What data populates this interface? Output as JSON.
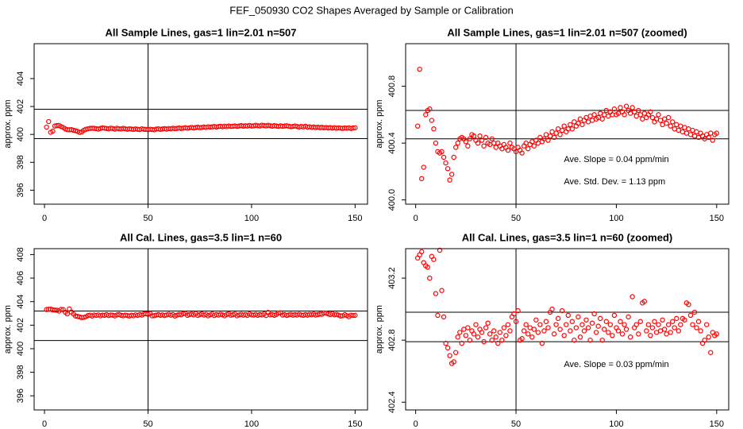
{
  "title": "FEF_050930  CO2 Shapes Averaged by Sample or Calibration",
  "chart_data": [
    {
      "type": "scatter",
      "title": "All Sample Lines, gas=1 lin=2.01 n=507",
      "ylabel": "approx. ppm",
      "color": "#ff0000",
      "xlim": [
        -5,
        156
      ],
      "ylim": [
        395,
        406.5
      ],
      "xticks": [
        0,
        50,
        100,
        150
      ],
      "yticks": [
        396,
        398,
        400,
        402,
        404
      ],
      "hlines": [
        401.8,
        399.7
      ],
      "vline": 50,
      "x": [
        1,
        2,
        3,
        4,
        5,
        6,
        7,
        8,
        9,
        10,
        11,
        12,
        13,
        14,
        15,
        16,
        17,
        18,
        19,
        20,
        21,
        22,
        23,
        24,
        25,
        26,
        27,
        28,
        29,
        30,
        31,
        32,
        33,
        34,
        35,
        36,
        37,
        38,
        39,
        40,
        41,
        42,
        43,
        44,
        45,
        46,
        47,
        48,
        49,
        50,
        51,
        52,
        53,
        54,
        55,
        56,
        57,
        58,
        59,
        60,
        61,
        62,
        63,
        64,
        65,
        66,
        67,
        68,
        69,
        70,
        71,
        72,
        73,
        74,
        75,
        76,
        77,
        78,
        79,
        80,
        81,
        82,
        83,
        84,
        85,
        86,
        87,
        88,
        89,
        90,
        91,
        92,
        93,
        94,
        95,
        96,
        97,
        98,
        99,
        100,
        101,
        102,
        103,
        104,
        105,
        106,
        107,
        108,
        109,
        110,
        111,
        112,
        113,
        114,
        115,
        116,
        117,
        118,
        119,
        120,
        121,
        122,
        123,
        124,
        125,
        126,
        127,
        128,
        129,
        130,
        131,
        132,
        133,
        134,
        135,
        136,
        137,
        138,
        139,
        140,
        141,
        142,
        143,
        144,
        145,
        146,
        147,
        148,
        149,
        150
      ],
      "values": [
        400.52,
        400.92,
        400.15,
        400.23,
        400.6,
        400.63,
        400.64,
        400.56,
        400.5,
        400.4,
        400.34,
        400.33,
        400.34,
        400.3,
        400.26,
        400.22,
        400.14,
        400.18,
        400.3,
        400.37,
        400.4,
        400.43,
        400.44,
        400.43,
        400.41,
        400.38,
        400.43,
        400.46,
        400.45,
        400.42,
        400.4,
        400.45,
        400.42,
        400.38,
        400.44,
        400.4,
        400.39,
        400.43,
        400.4,
        400.37,
        400.4,
        400.38,
        400.36,
        400.39,
        400.37,
        400.35,
        400.4,
        400.37,
        400.36,
        400.34,
        400.37,
        400.35,
        400.33,
        400.38,
        400.4,
        400.36,
        400.39,
        400.41,
        400.38,
        400.42,
        400.4,
        400.44,
        400.41,
        400.43,
        400.46,
        400.42,
        400.45,
        400.48,
        400.44,
        400.47,
        400.5,
        400.46,
        400.49,
        400.52,
        400.48,
        400.5,
        400.53,
        400.5,
        400.55,
        400.52,
        400.54,
        400.57,
        400.53,
        400.56,
        400.58,
        400.55,
        400.59,
        400.56,
        400.6,
        400.57,
        400.58,
        400.61,
        400.57,
        400.6,
        400.63,
        400.59,
        400.62,
        400.6,
        400.64,
        400.6,
        400.61,
        400.65,
        400.62,
        400.6,
        400.66,
        400.63,
        400.61,
        400.65,
        400.62,
        400.59,
        400.63,
        400.6,
        400.57,
        400.61,
        400.58,
        400.6,
        400.62,
        400.58,
        400.55,
        400.57,
        400.6,
        400.56,
        400.53,
        400.57,
        400.54,
        400.58,
        400.52,
        400.55,
        400.5,
        400.53,
        400.49,
        400.52,
        400.48,
        400.51,
        400.47,
        400.5,
        400.46,
        400.49,
        400.45,
        400.48,
        400.44,
        400.47,
        400.45,
        400.43,
        400.46,
        400.44,
        400.47,
        400.42,
        400.46,
        400.47
      ]
    },
    {
      "type": "scatter",
      "title": "All Sample Lines, gas=1 lin=2.01 n=507 (zoomed)",
      "ylabel": "approx. ppm",
      "color": "#ff0000",
      "xlim": [
        -5,
        156
      ],
      "ylim": [
        399.97,
        401.1
      ],
      "xticks": [
        0,
        50,
        100,
        150
      ],
      "yticks": [
        {
          "value": 400,
          "label": "400.0"
        },
        400.4,
        400.8
      ],
      "hlines": [
        400.63,
        400.43
      ],
      "vline": 50,
      "annotations": [
        "Ave. Slope =  0.04  ppm/min",
        "Ave. Std. Dev. =  1.13  ppm"
      ],
      "x": [
        1,
        2,
        3,
        4,
        5,
        6,
        7,
        8,
        9,
        10,
        11,
        12,
        13,
        14,
        15,
        16,
        17,
        18,
        19,
        20,
        21,
        22,
        23,
        24,
        25,
        26,
        27,
        28,
        29,
        30,
        31,
        32,
        33,
        34,
        35,
        36,
        37,
        38,
        39,
        40,
        41,
        42,
        43,
        44,
        45,
        46,
        47,
        48,
        49,
        50,
        51,
        52,
        53,
        54,
        55,
        56,
        57,
        58,
        59,
        60,
        61,
        62,
        63,
        64,
        65,
        66,
        67,
        68,
        69,
        70,
        71,
        72,
        73,
        74,
        75,
        76,
        77,
        78,
        79,
        80,
        81,
        82,
        83,
        84,
        85,
        86,
        87,
        88,
        89,
        90,
        91,
        92,
        93,
        94,
        95,
        96,
        97,
        98,
        99,
        100,
        101,
        102,
        103,
        104,
        105,
        106,
        107,
        108,
        109,
        110,
        111,
        112,
        113,
        114,
        115,
        116,
        117,
        118,
        119,
        120,
        121,
        122,
        123,
        124,
        125,
        126,
        127,
        128,
        129,
        130,
        131,
        132,
        133,
        134,
        135,
        136,
        137,
        138,
        139,
        140,
        141,
        142,
        143,
        144,
        145,
        146,
        147,
        148,
        149,
        150
      ],
      "values": [
        400.52,
        400.92,
        400.15,
        400.23,
        400.6,
        400.63,
        400.64,
        400.56,
        400.5,
        400.4,
        400.34,
        400.33,
        400.34,
        400.3,
        400.26,
        400.22,
        400.14,
        400.18,
        400.3,
        400.37,
        400.4,
        400.43,
        400.44,
        400.43,
        400.41,
        400.38,
        400.43,
        400.46,
        400.45,
        400.42,
        400.4,
        400.45,
        400.42,
        400.38,
        400.44,
        400.4,
        400.39,
        400.43,
        400.4,
        400.37,
        400.4,
        400.38,
        400.36,
        400.39,
        400.37,
        400.35,
        400.4,
        400.37,
        400.36,
        400.34,
        400.37,
        400.35,
        400.33,
        400.38,
        400.4,
        400.36,
        400.39,
        400.41,
        400.38,
        400.42,
        400.4,
        400.44,
        400.41,
        400.43,
        400.46,
        400.42,
        400.45,
        400.48,
        400.44,
        400.47,
        400.5,
        400.46,
        400.49,
        400.52,
        400.48,
        400.5,
        400.53,
        400.5,
        400.55,
        400.52,
        400.54,
        400.57,
        400.53,
        400.56,
        400.58,
        400.55,
        400.59,
        400.56,
        400.6,
        400.57,
        400.58,
        400.61,
        400.57,
        400.6,
        400.63,
        400.59,
        400.62,
        400.6,
        400.64,
        400.6,
        400.61,
        400.65,
        400.62,
        400.6,
        400.66,
        400.63,
        400.61,
        400.65,
        400.62,
        400.59,
        400.63,
        400.6,
        400.57,
        400.61,
        400.58,
        400.6,
        400.62,
        400.58,
        400.55,
        400.57,
        400.6,
        400.56,
        400.53,
        400.57,
        400.54,
        400.58,
        400.52,
        400.55,
        400.5,
        400.53,
        400.49,
        400.52,
        400.48,
        400.51,
        400.47,
        400.5,
        400.46,
        400.49,
        400.45,
        400.48,
        400.44,
        400.47,
        400.45,
        400.43,
        400.46,
        400.44,
        400.47,
        400.42,
        400.46,
        400.47
      ]
    },
    {
      "type": "scatter",
      "title": "All Cal. Lines, gas=3.5 lin=1 n=60",
      "ylabel": "approx. ppm",
      "color": "#ff0000",
      "xlim": [
        -5,
        156
      ],
      "ylim": [
        394.8,
        408.5
      ],
      "xticks": [
        0,
        50,
        100,
        150
      ],
      "yticks": [
        396,
        398,
        400,
        402,
        404,
        406,
        408
      ],
      "hlines": [
        403.2,
        400.7
      ],
      "vline": 50,
      "x": [
        1,
        2,
        3,
        4,
        5,
        6,
        7,
        8,
        9,
        10,
        11,
        12,
        13,
        14,
        15,
        16,
        17,
        18,
        19,
        20,
        21,
        22,
        23,
        24,
        25,
        26,
        27,
        28,
        29,
        30,
        31,
        32,
        33,
        34,
        35,
        36,
        37,
        38,
        39,
        40,
        41,
        42,
        43,
        44,
        45,
        46,
        47,
        48,
        49,
        50,
        51,
        52,
        53,
        54,
        55,
        56,
        57,
        58,
        59,
        60,
        61,
        62,
        63,
        64,
        65,
        66,
        67,
        68,
        69,
        70,
        71,
        72,
        73,
        74,
        75,
        76,
        77,
        78,
        79,
        80,
        81,
        82,
        83,
        84,
        85,
        86,
        87,
        88,
        89,
        90,
        91,
        92,
        93,
        94,
        95,
        96,
        97,
        98,
        99,
        100,
        101,
        102,
        103,
        104,
        105,
        106,
        107,
        108,
        109,
        110,
        111,
        112,
        113,
        114,
        115,
        116,
        117,
        118,
        119,
        120,
        121,
        122,
        123,
        124,
        125,
        126,
        127,
        128,
        129,
        130,
        131,
        132,
        133,
        134,
        135,
        136,
        137,
        138,
        139,
        140,
        141,
        142,
        143,
        144,
        145,
        146,
        147,
        148,
        149,
        150
      ],
      "values": [
        403.33,
        403.35,
        403.37,
        403.3,
        403.28,
        403.27,
        403.2,
        403.34,
        403.32,
        403.1,
        402.96,
        403.38,
        403.12,
        402.95,
        402.78,
        402.75,
        402.7,
        402.65,
        402.66,
        402.72,
        402.82,
        402.85,
        402.78,
        402.87,
        402.83,
        402.88,
        402.8,
        402.86,
        402.84,
        402.9,
        402.82,
        402.87,
        402.85,
        402.79,
        402.88,
        402.91,
        402.84,
        402.8,
        402.86,
        402.82,
        402.78,
        402.85,
        402.8,
        402.88,
        402.83,
        402.9,
        402.86,
        402.95,
        402.97,
        402.92,
        402.99,
        402.8,
        402.81,
        402.86,
        402.9,
        402.84,
        402.88,
        402.82,
        402.87,
        402.93,
        402.85,
        402.9,
        402.78,
        402.86,
        402.92,
        402.88,
        402.98,
        403.0,
        402.84,
        402.9,
        402.94,
        402.87,
        402.99,
        402.83,
        402.9,
        402.96,
        402.86,
        402.92,
        402.8,
        402.88,
        402.95,
        402.82,
        402.9,
        402.86,
        402.93,
        402.88,
        402.8,
        402.91,
        402.97,
        402.85,
        402.89,
        402.94,
        402.8,
        402.87,
        402.92,
        402.85,
        402.9,
        402.83,
        402.96,
        402.88,
        402.86,
        402.92,
        402.84,
        402.9,
        402.87,
        402.95,
        402.82,
        403.08,
        402.88,
        402.9,
        402.84,
        402.92,
        403.04,
        403.05,
        402.86,
        402.9,
        402.83,
        402.88,
        402.92,
        402.85,
        402.9,
        402.86,
        402.93,
        402.87,
        402.84,
        402.9,
        402.85,
        402.92,
        402.88,
        402.94,
        402.86,
        402.9,
        402.94,
        402.93,
        403.04,
        403.03,
        402.96,
        402.9,
        402.98,
        402.88,
        402.92,
        402.86,
        402.78,
        402.8,
        402.9,
        402.82,
        402.72,
        402.85,
        402.83,
        402.84
      ]
    },
    {
      "type": "scatter",
      "title": "All Cal. Lines, gas=3.5 lin=1 n=60 (zoomed)",
      "ylabel": "approx. ppm",
      "color": "#ff0000",
      "xlim": [
        -5,
        156
      ],
      "ylim": [
        402.35,
        403.39
      ],
      "xticks": [
        0,
        50,
        100,
        150
      ],
      "yticks": [
        402.4,
        402.8,
        403.2
      ],
      "hlines": [
        402.98,
        402.79
      ],
      "vline": 50,
      "annotations": [
        "Ave. Slope =  0.03  ppm/min"
      ],
      "x": [
        1,
        2,
        3,
        4,
        5,
        6,
        7,
        8,
        9,
        10,
        11,
        12,
        13,
        14,
        15,
        16,
        17,
        18,
        19,
        20,
        21,
        22,
        23,
        24,
        25,
        26,
        27,
        28,
        29,
        30,
        31,
        32,
        33,
        34,
        35,
        36,
        37,
        38,
        39,
        40,
        41,
        42,
        43,
        44,
        45,
        46,
        47,
        48,
        49,
        50,
        51,
        52,
        53,
        54,
        55,
        56,
        57,
        58,
        59,
        60,
        61,
        62,
        63,
        64,
        65,
        66,
        67,
        68,
        69,
        70,
        71,
        72,
        73,
        74,
        75,
        76,
        77,
        78,
        79,
        80,
        81,
        82,
        83,
        84,
        85,
        86,
        87,
        88,
        89,
        90,
        91,
        92,
        93,
        94,
        95,
        96,
        97,
        98,
        99,
        100,
        101,
        102,
        103,
        104,
        105,
        106,
        107,
        108,
        109,
        110,
        111,
        112,
        113,
        114,
        115,
        116,
        117,
        118,
        119,
        120,
        121,
        122,
        123,
        124,
        125,
        126,
        127,
        128,
        129,
        130,
        131,
        132,
        133,
        134,
        135,
        136,
        137,
        138,
        139,
        140,
        141,
        142,
        143,
        144,
        145,
        146,
        147,
        148,
        149,
        150
      ],
      "values": [
        403.33,
        403.35,
        403.37,
        403.3,
        403.28,
        403.27,
        403.2,
        403.34,
        403.32,
        403.1,
        402.96,
        403.38,
        403.12,
        402.95,
        402.78,
        402.75,
        402.7,
        402.65,
        402.66,
        402.72,
        402.82,
        402.85,
        402.78,
        402.87,
        402.83,
        402.88,
        402.8,
        402.86,
        402.84,
        402.9,
        402.82,
        402.87,
        402.85,
        402.79,
        402.88,
        402.91,
        402.84,
        402.8,
        402.86,
        402.82,
        402.78,
        402.85,
        402.8,
        402.88,
        402.83,
        402.9,
        402.86,
        402.95,
        402.97,
        402.92,
        402.99,
        402.8,
        402.81,
        402.86,
        402.9,
        402.84,
        402.88,
        402.82,
        402.87,
        402.93,
        402.85,
        402.9,
        402.78,
        402.86,
        402.92,
        402.88,
        402.98,
        403.0,
        402.84,
        402.9,
        402.94,
        402.87,
        402.99,
        402.83,
        402.9,
        402.96,
        402.86,
        402.92,
        402.8,
        402.88,
        402.95,
        402.82,
        402.9,
        402.86,
        402.93,
        402.88,
        402.8,
        402.91,
        402.97,
        402.85,
        402.89,
        402.94,
        402.8,
        402.87,
        402.92,
        402.85,
        402.9,
        402.83,
        402.96,
        402.88,
        402.86,
        402.92,
        402.84,
        402.9,
        402.87,
        402.95,
        402.82,
        403.08,
        402.88,
        402.9,
        402.84,
        402.92,
        403.04,
        403.05,
        402.86,
        402.9,
        402.83,
        402.88,
        402.92,
        402.85,
        402.9,
        402.86,
        402.93,
        402.87,
        402.84,
        402.9,
        402.85,
        402.92,
        402.88,
        402.94,
        402.86,
        402.9,
        402.94,
        402.93,
        403.04,
        403.03,
        402.96,
        402.9,
        402.98,
        402.88,
        402.92,
        402.86,
        402.78,
        402.8,
        402.9,
        402.82,
        402.72,
        402.85,
        402.83,
        402.84
      ]
    }
  ]
}
